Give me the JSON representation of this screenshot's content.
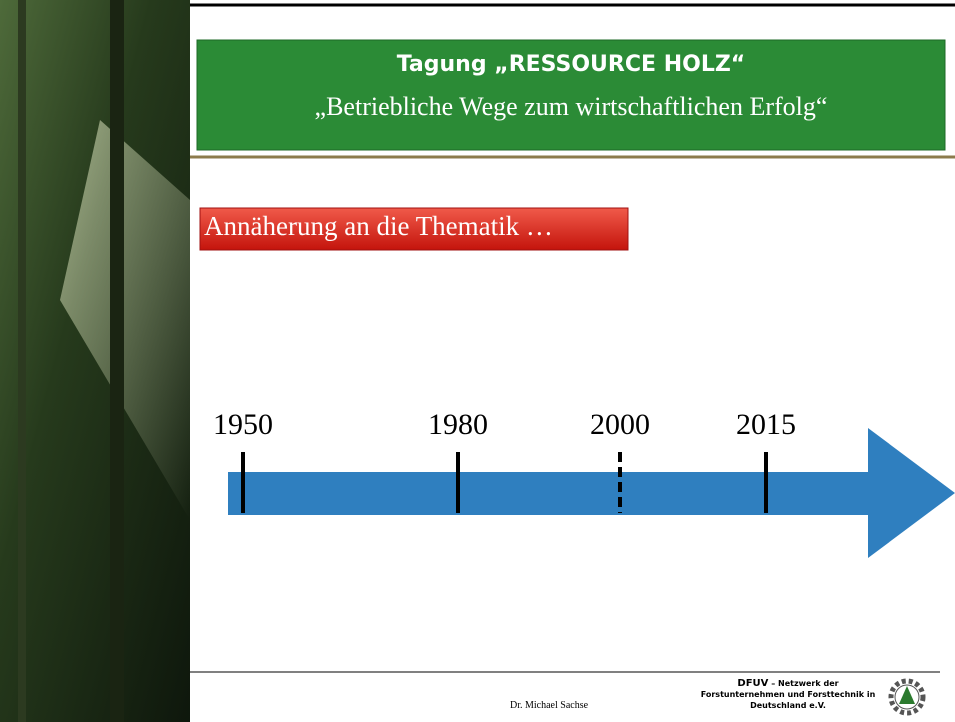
{
  "header": {
    "title": "Tagung „RESSOURCE HOLZ“",
    "subtitle": "„Betriebliche Wege zum wirtschaftlichen Erfolg“"
  },
  "section_label": "Annäherung an die Thematik …",
  "timeline": {
    "labels": [
      "1950",
      "1980",
      "2000",
      "2015"
    ]
  },
  "footer": {
    "author": "Dr. Michael Sachse",
    "org_abbr": "DFUV",
    "org_name": " – Netzwerk der Forstunternehmen und Forsttechnik in Deutschland e.V."
  }
}
